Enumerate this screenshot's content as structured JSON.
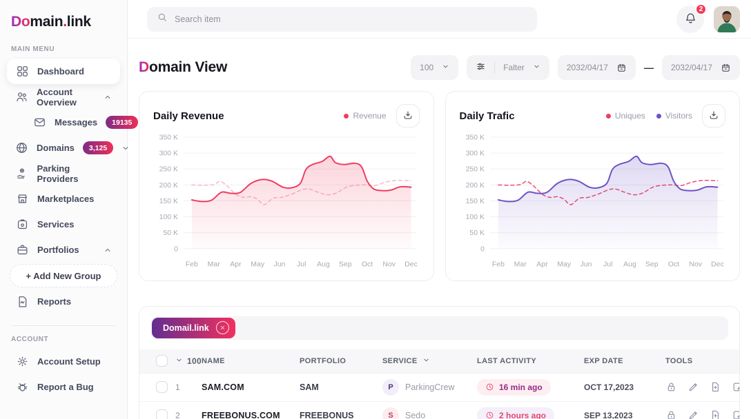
{
  "brand": {
    "do": "Do",
    "main": "main",
    "dot": ".",
    "link": "link"
  },
  "topbar": {
    "search_placeholder": "Search item",
    "notification_count": "2"
  },
  "sidebar": {
    "main_menu_label": "MAIN MENU",
    "account_label": "ACCOUNT",
    "items": [
      {
        "id": "dashboard",
        "label": "Dashboard",
        "icon": "grid",
        "active": true
      },
      {
        "id": "account-overview",
        "label": "Account Overview",
        "icon": "users",
        "chevron": "up"
      },
      {
        "id": "messages",
        "label": "Messages",
        "icon": "mail",
        "badge": "19135",
        "indent": true
      },
      {
        "id": "domains",
        "label": "Domains",
        "icon": "globe",
        "badge": "3,125",
        "chevron": "down"
      },
      {
        "id": "parking-providers",
        "label": "Parking Providers",
        "icon": "parking"
      },
      {
        "id": "marketplaces",
        "label": "Marketplaces",
        "icon": "store"
      },
      {
        "id": "services",
        "label": "Services",
        "icon": "services"
      },
      {
        "id": "portfolios",
        "label": "Portfolios",
        "icon": "briefcase",
        "chevron": "up"
      },
      {
        "id": "add-new-group",
        "label": "+ Add New Group",
        "button": true
      },
      {
        "id": "reports",
        "label": "Reports",
        "icon": "report"
      }
    ],
    "account_items": [
      {
        "id": "account-setup",
        "label": "Account Setup",
        "icon": "gear"
      },
      {
        "id": "report-a-bug",
        "label": "Report a Bug",
        "icon": "bug"
      }
    ]
  },
  "header": {
    "title_lead": "D",
    "title_rest": "omain View",
    "page_size": "100",
    "filter_label": "Falter",
    "date_from": "2032/04/17",
    "date_separator": "—",
    "date_to": "2032/04/17"
  },
  "chart_data": [
    {
      "type": "area-line",
      "title": "Daily Revenue",
      "legend": [
        {
          "label": "Revenue",
          "color": "#ee3d60"
        }
      ],
      "x_ticks": [
        "Feb",
        "Mar",
        "Apr",
        "May",
        "Jun",
        "Jul",
        "Aug",
        "Sep",
        "Oct",
        "Nov",
        "Dec"
      ],
      "y_ticks": [
        "350 K",
        "300 K",
        "250 K",
        "200 K",
        "150 K",
        "100 K",
        "50 K",
        "0"
      ],
      "ylim": [
        0,
        350
      ],
      "values_unit": "K (thousands)",
      "grid": true,
      "legend_position": "top-right",
      "series": [
        {
          "name": "Revenue trend (dashed)",
          "style": "dashed",
          "color": "#f7b9c8",
          "fill": false,
          "x": [
            0,
            0.5,
            1.0,
            1.3,
            1.65,
            2.0,
            2.35,
            2.7,
            3.0,
            3.3,
            3.7,
            4.1,
            4.55,
            5.0,
            5.35,
            5.8,
            6.2,
            6.6,
            7.05,
            7.5,
            7.95,
            8.35,
            8.85,
            9.35,
            10
          ],
          "values": [
            200,
            199,
            201,
            211,
            194,
            171,
            161,
            163,
            155,
            138,
            158,
            161,
            171,
            184,
            187,
            176,
            169,
            175,
            193,
            199,
            200,
            198,
            209,
            214,
            213
          ]
        },
        {
          "name": "Revenue",
          "style": "solid",
          "color": "#ee3d60",
          "fill": true,
          "x": [
            0,
            0.45,
            0.9,
            1.35,
            1.75,
            2.2,
            2.7,
            3.2,
            3.65,
            4.15,
            4.55,
            4.95,
            5.2,
            5.5,
            5.95,
            6.3,
            6.55,
            6.95,
            7.45,
            7.75,
            8.0,
            8.3,
            8.7,
            9.1,
            9.5,
            10
          ],
          "values": [
            153,
            148,
            152,
            177,
            174,
            176,
            205,
            217,
            212,
            193,
            191,
            205,
            248,
            264,
            274,
            290,
            270,
            264,
            268,
            256,
            212,
            187,
            182,
            184,
            194,
            193
          ]
        }
      ]
    },
    {
      "type": "area-line",
      "title": "Daily Trafic",
      "legend": [
        {
          "label": "Uniques",
          "color": "#ee3d60"
        },
        {
          "label": "Visitors",
          "color": "#6f52c5"
        }
      ],
      "x_ticks": [
        "Feb",
        "Mar",
        "Apr",
        "May",
        "Jun",
        "Jul",
        "Aug",
        "Sep",
        "Oct",
        "Nov",
        "Dec"
      ],
      "y_ticks": [
        "350 K",
        "300 K",
        "250 K",
        "200 K",
        "150 K",
        "100 K",
        "50 K",
        "0"
      ],
      "ylim": [
        0,
        350
      ],
      "values_unit": "K (thousands)",
      "grid": true,
      "legend_position": "top-right",
      "series": [
        {
          "name": "Uniques",
          "style": "dashed",
          "color": "#f04a6e",
          "fill": false,
          "x": [
            0,
            0.5,
            1.0,
            1.3,
            1.65,
            2.0,
            2.35,
            2.7,
            3.0,
            3.3,
            3.7,
            4.1,
            4.55,
            5.0,
            5.35,
            5.8,
            6.2,
            6.6,
            7.05,
            7.5,
            7.95,
            8.35,
            8.85,
            9.35,
            10
          ],
          "values": [
            200,
            199,
            201,
            211,
            194,
            171,
            161,
            163,
            155,
            138,
            158,
            161,
            171,
            184,
            187,
            176,
            169,
            175,
            193,
            199,
            200,
            198,
            209,
            214,
            213
          ]
        },
        {
          "name": "Visitors",
          "style": "solid",
          "color": "#6f52c5",
          "fill": true,
          "x": [
            0,
            0.45,
            0.9,
            1.35,
            1.75,
            2.2,
            2.7,
            3.2,
            3.65,
            4.15,
            4.55,
            4.95,
            5.2,
            5.5,
            5.95,
            6.3,
            6.55,
            6.95,
            7.45,
            7.75,
            8.0,
            8.3,
            8.7,
            9.1,
            9.5,
            10
          ],
          "values": [
            153,
            148,
            152,
            177,
            174,
            176,
            205,
            217,
            212,
            193,
            191,
            205,
            248,
            264,
            274,
            290,
            270,
            264,
            268,
            256,
            212,
            187,
            182,
            184,
            194,
            193
          ]
        }
      ]
    }
  ],
  "table": {
    "filter_chip": "Domail.link",
    "page_size": "100",
    "columns": [
      "NAME",
      "PORTFOLIO",
      "SERVICE",
      "LAST ACTIVITY",
      "EXP DATE",
      "TOOLS"
    ],
    "tools": [
      "lock",
      "pencil",
      "file-plus",
      "note-plus"
    ],
    "rows": [
      {
        "num": "1",
        "name": "SAM.COM",
        "portfolio": "SAM",
        "service_initial": "P",
        "service": "ParkingCrew",
        "service_variant": "lavender",
        "last_activity": "16 min ago",
        "activity_variant": "pink",
        "exp_date": "OCT 17,2023"
      },
      {
        "num": "2",
        "name": "FREEBONUS.COM",
        "portfolio": "FREEBONUS",
        "service_initial": "S",
        "service": "Sedo",
        "service_variant": "pink",
        "last_activity": "2 hours ago",
        "activity_variant": "purple",
        "exp_date": "SEP 13,2023"
      }
    ]
  },
  "colors": {
    "accent_red": "#ee3d60",
    "accent_purple": "#6f52c5",
    "dashed_pink": "#f7b9c8",
    "badge_gradient_start": "#7e2b87",
    "badge_gradient_end": "#ee2e57",
    "chip_gradient_start": "#642e90",
    "chip_gradient_end": "#f0305e"
  }
}
